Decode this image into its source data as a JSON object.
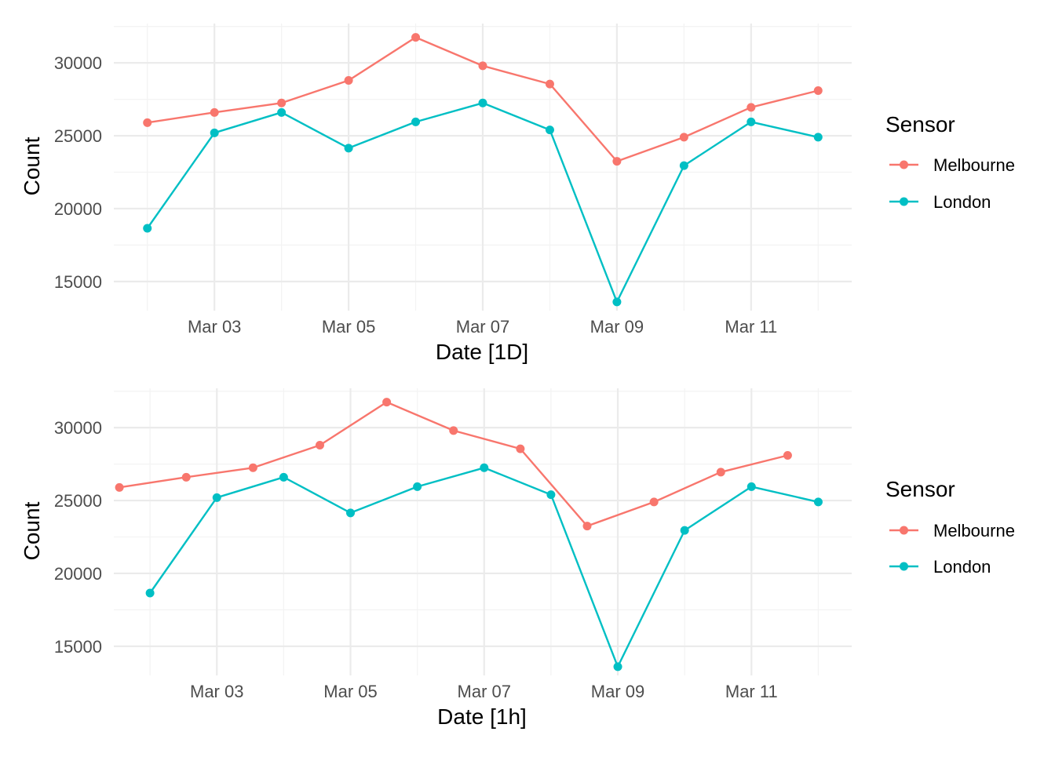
{
  "chart_data": [
    {
      "type": "line",
      "xlabel": "Date [1D]",
      "ylabel": "Count",
      "ylim": [
        13000,
        32700
      ],
      "yticks": [
        15000,
        20000,
        25000,
        30000
      ],
      "ytick_labels": [
        "15000",
        "20000",
        "25000",
        "30000"
      ],
      "xlim": [
        "2018-03-01 12:00",
        "2018-03-12 12:00"
      ],
      "xticks": [
        "2018-03-03",
        "2018-03-05",
        "2018-03-07",
        "2018-03-09",
        "2018-03-11"
      ],
      "xtick_labels": [
        "Mar 03",
        "Mar 05",
        "Mar 07",
        "Mar 09",
        "Mar 11"
      ],
      "grid": true,
      "legend": {
        "title": "Sensor",
        "placement": "right"
      },
      "series": [
        {
          "name": "Melbourne",
          "color": "#F8766D",
          "points": [
            {
              "x": "2018-03-02 00:00",
              "y": 25900
            },
            {
              "x": "2018-03-03 00:00",
              "y": 26600
            },
            {
              "x": "2018-03-04 00:00",
              "y": 27250
            },
            {
              "x": "2018-03-05 00:00",
              "y": 28800
            },
            {
              "x": "2018-03-06 00:00",
              "y": 31750
            },
            {
              "x": "2018-03-07 00:00",
              "y": 29800
            },
            {
              "x": "2018-03-08 00:00",
              "y": 28550
            },
            {
              "x": "2018-03-09 00:00",
              "y": 23250
            },
            {
              "x": "2018-03-10 00:00",
              "y": 24900
            },
            {
              "x": "2018-03-11 00:00",
              "y": 26950
            },
            {
              "x": "2018-03-12 00:00",
              "y": 28100
            }
          ]
        },
        {
          "name": "London",
          "color": "#00BFC4",
          "points": [
            {
              "x": "2018-03-02 00:00",
              "y": 18650
            },
            {
              "x": "2018-03-03 00:00",
              "y": 25200
            },
            {
              "x": "2018-03-04 00:00",
              "y": 26600
            },
            {
              "x": "2018-03-05 00:00",
              "y": 24150
            },
            {
              "x": "2018-03-06 00:00",
              "y": 25950
            },
            {
              "x": "2018-03-07 00:00",
              "y": 27250
            },
            {
              "x": "2018-03-08 00:00",
              "y": 25400
            },
            {
              "x": "2018-03-09 00:00",
              "y": 13600
            },
            {
              "x": "2018-03-10 00:00",
              "y": 22950
            },
            {
              "x": "2018-03-11 00:00",
              "y": 25950
            },
            {
              "x": "2018-03-12 00:00",
              "y": 24900
            }
          ]
        }
      ]
    },
    {
      "type": "line",
      "xlabel": "Date [1h]",
      "ylabel": "Count",
      "ylim": [
        13000,
        32700
      ],
      "yticks": [
        15000,
        20000,
        25000,
        30000
      ],
      "ytick_labels": [
        "15000",
        "20000",
        "25000",
        "30000"
      ],
      "xlim": [
        "2018-03-01 11:00",
        "2018-03-12 12:00"
      ],
      "xticks": [
        "2018-03-03",
        "2018-03-05",
        "2018-03-07",
        "2018-03-09",
        "2018-03-11"
      ],
      "xtick_labels": [
        "Mar 03",
        "Mar 05",
        "Mar 07",
        "Mar 09",
        "Mar 11"
      ],
      "grid": true,
      "legend": {
        "title": "Sensor",
        "placement": "right"
      },
      "series": [
        {
          "name": "Melbourne",
          "color": "#F8766D",
          "points": [
            {
              "x": "2018-03-01 13:00",
              "y": 25900
            },
            {
              "x": "2018-03-02 13:00",
              "y": 26600
            },
            {
              "x": "2018-03-03 13:00",
              "y": 27250
            },
            {
              "x": "2018-03-04 13:00",
              "y": 28800
            },
            {
              "x": "2018-03-05 13:00",
              "y": 31750
            },
            {
              "x": "2018-03-06 13:00",
              "y": 29800
            },
            {
              "x": "2018-03-07 13:00",
              "y": 28550
            },
            {
              "x": "2018-03-08 13:00",
              "y": 23250
            },
            {
              "x": "2018-03-09 13:00",
              "y": 24900
            },
            {
              "x": "2018-03-10 13:00",
              "y": 26950
            },
            {
              "x": "2018-03-11 13:00",
              "y": 28100
            }
          ]
        },
        {
          "name": "London",
          "color": "#00BFC4",
          "points": [
            {
              "x": "2018-03-02 00:00",
              "y": 18650
            },
            {
              "x": "2018-03-03 00:00",
              "y": 25200
            },
            {
              "x": "2018-03-04 00:00",
              "y": 26600
            },
            {
              "x": "2018-03-05 00:00",
              "y": 24150
            },
            {
              "x": "2018-03-06 00:00",
              "y": 25950
            },
            {
              "x": "2018-03-07 00:00",
              "y": 27250
            },
            {
              "x": "2018-03-08 00:00",
              "y": 25400
            },
            {
              "x": "2018-03-09 00:00",
              "y": 13600
            },
            {
              "x": "2018-03-10 00:00",
              "y": 22950
            },
            {
              "x": "2018-03-11 00:00",
              "y": 25950
            },
            {
              "x": "2018-03-12 00:00",
              "y": 24900
            }
          ]
        }
      ]
    }
  ]
}
